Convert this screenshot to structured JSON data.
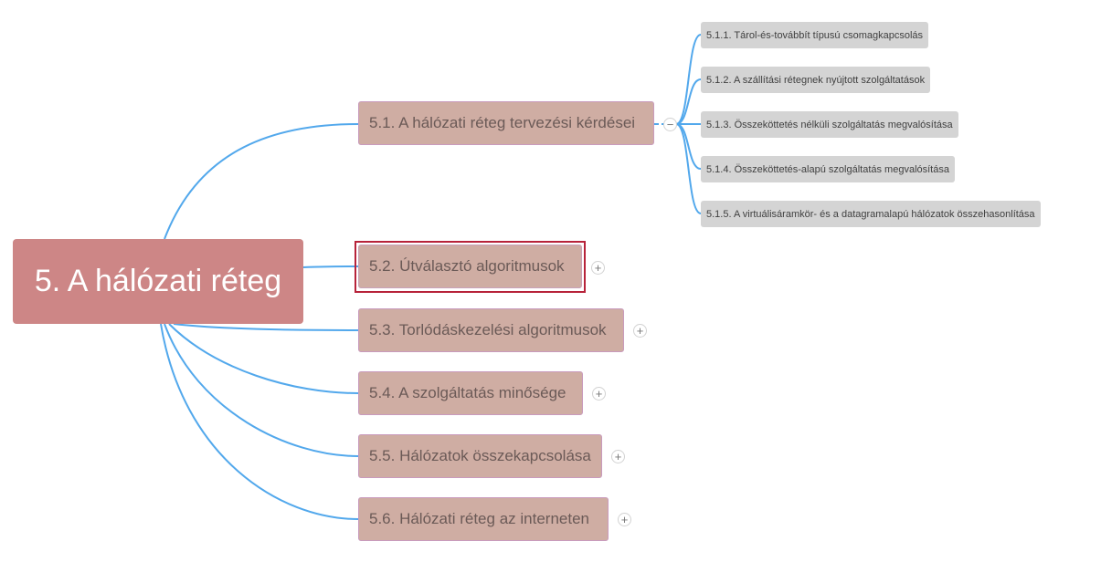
{
  "root": {
    "label": "5. A hálózati réteg"
  },
  "branches": [
    {
      "label": "5.1. A hálózati réteg tervezési kérdései",
      "toggle": "−"
    },
    {
      "label": "5.2. Útválasztó algoritmusok",
      "toggle": "+"
    },
    {
      "label": "5.3. Torlódáskezelési algoritmusok",
      "toggle": "+"
    },
    {
      "label": "5.4. A szolgáltatás minősége",
      "toggle": "+"
    },
    {
      "label": "5.5. Hálózatok összekapcsolása",
      "toggle": "+"
    },
    {
      "label": "5.6. Hálózati réteg az interneten",
      "toggle": "+"
    }
  ],
  "subtopics": [
    {
      "label": "5.1.1. Tárol-és-továbbít típusú csomagkapcsolás"
    },
    {
      "label": "5.1.2. A szállítási rétegnek nyújtott szolgáltatások"
    },
    {
      "label": "5.1.3. Összeköttetés nélküli szolgáltatás megvalósítása"
    },
    {
      "label": "5.1.4. Összeköttetés-alapú szolgáltatás megvalósítása"
    },
    {
      "label": "5.1.5. A virtuálisáramkör- és a datagramalapú hálózatok összehasonlítása"
    }
  ],
  "colors": {
    "connector": "#52a8ec",
    "root_fill": "#cd8686",
    "branch_fill": "#cfada3",
    "subtopic_fill": "#d4d4d4",
    "selection": "#b7233a"
  }
}
